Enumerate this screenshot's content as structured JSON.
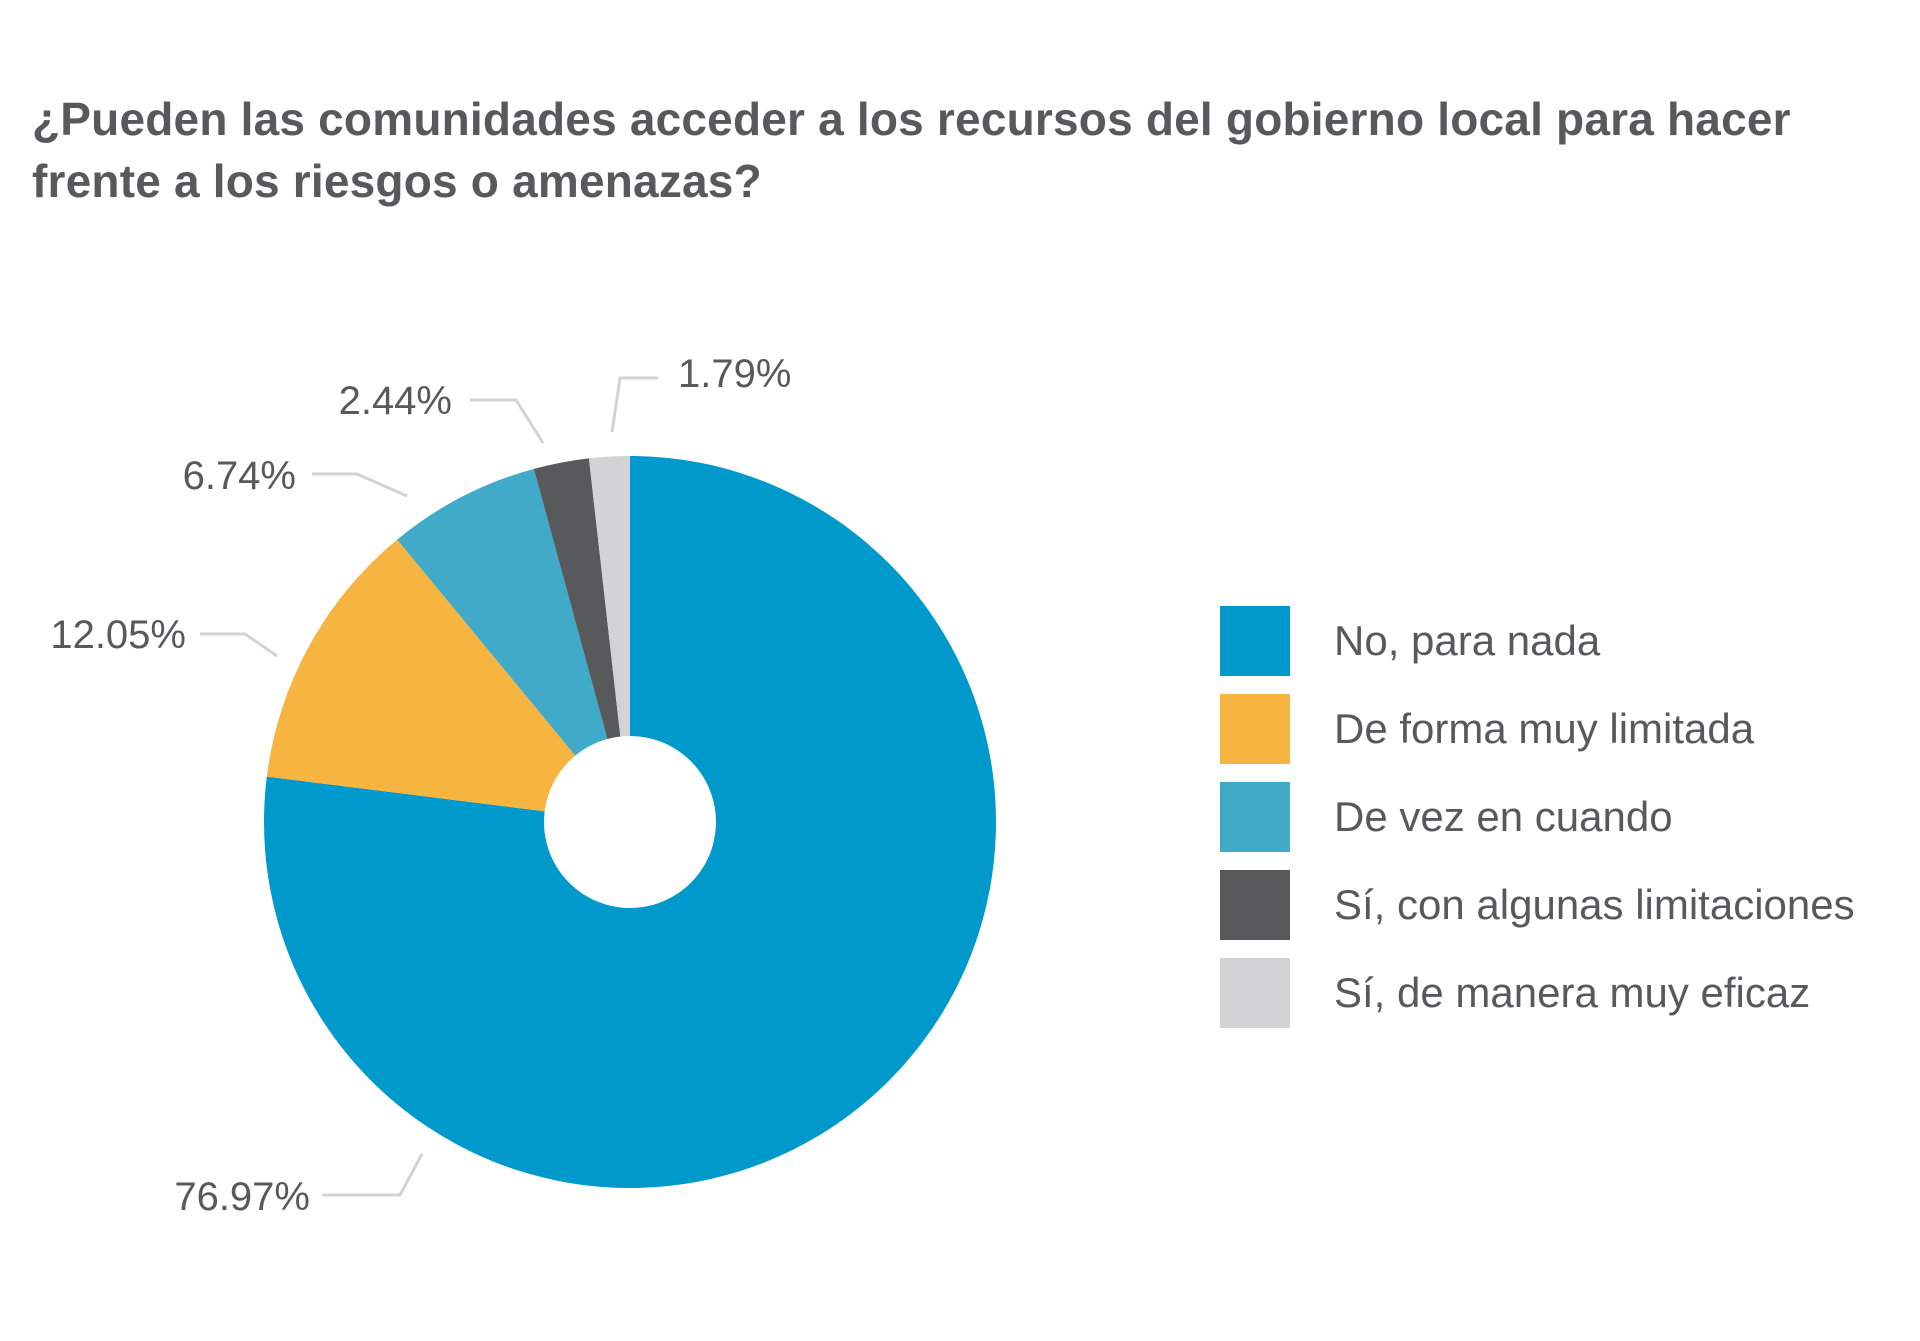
{
  "chart_data": {
    "type": "pie",
    "title": "¿Pueden las comunidades acceder a los recursos del gobierno local para hacer frente a los riesgos o amenazas?",
    "donut": true,
    "categories": [
      "No, para nada",
      "De forma muy limitada",
      "De vez en cuando",
      "Sí, con algunas limitaciones",
      "Sí, de manera muy eficaz"
    ],
    "values": [
      76.97,
      12.05,
      6.74,
      2.44,
      1.79
    ],
    "labels": [
      "76.97%",
      "12.05%",
      "6.74%",
      "2.44%",
      "1.79%"
    ],
    "colors": [
      "#0099cc",
      "#f6b440",
      "#41aac8",
      "#58595b",
      "#d1d3d4"
    ],
    "legend_position": "right"
  }
}
